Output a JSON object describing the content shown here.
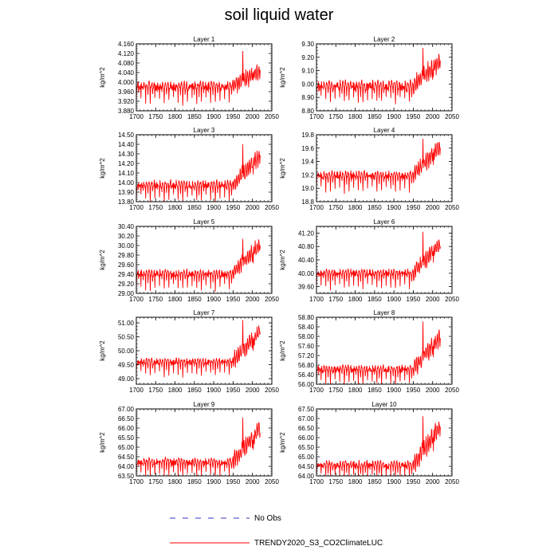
{
  "chart_data": {
    "type": "line",
    "title": "soil liquid water",
    "ylabel": "kg/m^2",
    "xlim": [
      1700,
      2050
    ],
    "xticks": [
      1700,
      1750,
      1800,
      1850,
      1900,
      1950,
      2000,
      2050
    ],
    "series_color": "#ff0000",
    "obs_color": "#3333cc",
    "legend": [
      {
        "name": "No Obs",
        "style": "dashed",
        "color": "#3333cc"
      },
      {
        "name": "TRENDY2020_S3_CO2ClimateLUC",
        "style": "solid",
        "color": "#ff0000"
      }
    ],
    "panels": [
      {
        "title": "Layer 1",
        "ylim": [
          3.88,
          4.16
        ],
        "yticks": [
          "3.880",
          "3.920",
          "3.960",
          "4.000",
          "4.040",
          "4.080",
          "4.120",
          "4.160"
        ],
        "base": 3.985,
        "amp": 0.012,
        "dip": 0.065,
        "early_noise": 0.01,
        "rise": 0.065,
        "late_amp": 0.03,
        "peak": 4.13
      },
      {
        "title": "Layer 2",
        "ylim": [
          8.8,
          9.3
        ],
        "yticks": [
          "8.80",
          "8.90",
          "9.00",
          "9.10",
          "9.20",
          "9.30"
        ],
        "base": 8.99,
        "amp": 0.025,
        "dip": 0.11,
        "early_noise": 0.02,
        "rise": 0.18,
        "late_amp": 0.06,
        "peak": 9.27
      },
      {
        "title": "Layer 3",
        "ylim": [
          13.8,
          14.5
        ],
        "yticks": [
          "13.80",
          "13.90",
          "14.00",
          "14.10",
          "14.20",
          "14.30",
          "14.40",
          "14.50"
        ],
        "base": 13.98,
        "amp": 0.03,
        "dip": 0.15,
        "early_noise": 0.02,
        "rise": 0.3,
        "late_amp": 0.07,
        "peak": 14.4
      },
      {
        "title": "Layer 4",
        "ylim": [
          18.8,
          19.8
        ],
        "yticks": [
          "18.8",
          "19.0",
          "19.2",
          "19.4",
          "19.6",
          "19.8"
        ],
        "base": 19.2,
        "amp": 0.04,
        "dip": 0.22,
        "early_noise": 0.03,
        "rise": 0.42,
        "late_amp": 0.1,
        "peak": 19.74
      },
      {
        "title": "Layer 5",
        "ylim": [
          29.0,
          30.4
        ],
        "yticks": [
          "29.00",
          "29.20",
          "29.40",
          "29.60",
          "29.80",
          "30.00",
          "30.20",
          "30.40"
        ],
        "base": 29.42,
        "amp": 0.05,
        "dip": 0.3,
        "early_noise": 0.04,
        "rise": 0.6,
        "late_amp": 0.14,
        "peak": 30.14
      },
      {
        "title": "Layer 6",
        "ylim": [
          39.4,
          41.4
        ],
        "yticks": [
          "39.60",
          "40.00",
          "40.40",
          "40.80",
          "41.20"
        ],
        "base": 40.02,
        "amp": 0.07,
        "dip": 0.42,
        "early_noise": 0.05,
        "rise": 0.85,
        "late_amp": 0.2,
        "peak": 41.24
      },
      {
        "title": "Layer 7",
        "ylim": [
          48.8,
          51.2
        ],
        "yticks": [
          "49.00",
          "49.50",
          "50.00",
          "50.50",
          "51.00"
        ],
        "base": 49.62,
        "amp": 0.08,
        "dip": 0.45,
        "early_noise": 0.06,
        "rise": 1.1,
        "late_amp": 0.25,
        "peak": 51.1
      },
      {
        "title": "Layer 8",
        "ylim": [
          56.0,
          58.8
        ],
        "yticks": [
          "56.00",
          "56.40",
          "56.80",
          "57.20",
          "57.60",
          "58.00",
          "58.40",
          "58.80"
        ],
        "base": 56.65,
        "amp": 0.1,
        "dip": 0.55,
        "early_noise": 0.08,
        "rise": 1.35,
        "late_amp": 0.3,
        "peak": 58.62
      },
      {
        "title": "Layer 9",
        "ylim": [
          63.5,
          67.0
        ],
        "yticks": [
          "63.50",
          "64.00",
          "64.50",
          "65.00",
          "65.50",
          "66.00",
          "66.50",
          "67.00"
        ],
        "base": 64.25,
        "amp": 0.13,
        "dip": 0.7,
        "early_noise": 0.1,
        "rise": 1.75,
        "late_amp": 0.38,
        "peak": 66.55
      },
      {
        "title": "Layer 10",
        "ylim": [
          64.0,
          67.5
        ],
        "yticks": [
          "64.00",
          "64.50",
          "65.00",
          "65.50",
          "66.00",
          "66.50",
          "67.00",
          "67.50"
        ],
        "base": 64.6,
        "amp": 0.13,
        "dip": 0.7,
        "early_noise": 0.1,
        "rise": 1.95,
        "late_amp": 0.4,
        "peak": 67.12
      }
    ]
  }
}
